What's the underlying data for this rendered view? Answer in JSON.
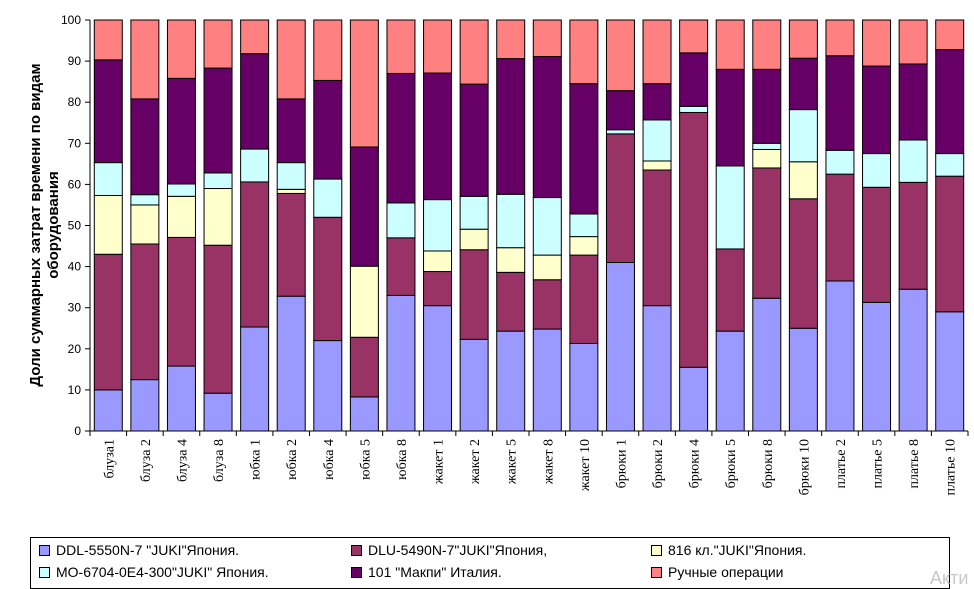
{
  "chart_data": {
    "type": "bar",
    "stacked": true,
    "ylabel": "Доли суммарных затрат времени по видам оборудования",
    "ylim": [
      0,
      100
    ],
    "yticks": [
      0,
      10,
      20,
      30,
      40,
      50,
      60,
      70,
      80,
      90,
      100
    ],
    "categories": [
      "блуза1",
      "блуза 2",
      "блуза 4",
      "блуза 8",
      "юбка 1",
      "юбка 2",
      "юбка 4",
      "юбка 5",
      "юбка 8",
      "жакет 1",
      "жакет 2",
      "жакет 5",
      "жакет 8",
      "жакет 10",
      "брюки 1",
      "брюки 2",
      "брюки 4",
      "брюки 5",
      "брюки 8",
      "брюки 10",
      "платье 2",
      "платье 5",
      "платье 8",
      "платье 10"
    ],
    "legend_position": "bottom",
    "series": [
      {
        "name": "DDL-5550N-7 \"JUKI\"Япония.",
        "color": "#9999ff",
        "values": [
          10,
          12.5,
          15.8,
          9.2,
          25.3,
          32.8,
          22,
          8.3,
          33,
          30.5,
          22.3,
          24.3,
          24.8,
          21.3,
          41,
          30.5,
          15.5,
          24.3,
          32.3,
          25,
          36.5,
          31.3,
          34.5,
          29
        ]
      },
      {
        "name": "DLU-5490N-7\"JUKI\"Япония,",
        "color": "#993366",
        "values": [
          33,
          33,
          31.3,
          36,
          35.3,
          25,
          30,
          14.5,
          14,
          8.3,
          21.8,
          14.3,
          12,
          21.5,
          31.3,
          33,
          62,
          20,
          31.7,
          31.5,
          26,
          28,
          26,
          33
        ]
      },
      {
        "name": "816 кл.\"JUKI\"Япония.",
        "color": "#ffffcc",
        "values": [
          14.3,
          9.5,
          10,
          13.8,
          0,
          1,
          0,
          17.3,
          0,
          5,
          5,
          6,
          6,
          4.5,
          0,
          2.2,
          0,
          0,
          4.5,
          9,
          0,
          0,
          0,
          0
        ]
      },
      {
        "name": "МО-6704-0Е4-300\"JUKI\" Япония.",
        "color": "#ccffff",
        "values": [
          8,
          2.5,
          3,
          3.8,
          8,
          6.5,
          9.3,
          0,
          8.5,
          12.5,
          8,
          13,
          14,
          5.5,
          1,
          10,
          1.5,
          20.2,
          1.5,
          12.7,
          5.8,
          8.2,
          10.3,
          5.5
        ]
      },
      {
        "name": "101 \"Макпи\" Италия.",
        "color": "#660066",
        "values": [
          25,
          23.3,
          25.7,
          25.5,
          23.2,
          15.5,
          24,
          29,
          31.5,
          30.8,
          27.3,
          33,
          34.3,
          31.7,
          9.5,
          8.8,
          13,
          23.5,
          18,
          12.5,
          23,
          21.3,
          18.5,
          25.3
        ]
      },
      {
        "name": "Ручные операции",
        "color": "#ff8080",
        "values": [
          9.7,
          19.2,
          14.2,
          11.7,
          8.2,
          19.2,
          14.7,
          30.9,
          13,
          12.9,
          15.6,
          9.4,
          8.9,
          15.5,
          17.2,
          15.5,
          8,
          12,
          12,
          9.3,
          8.7,
          11.2,
          10.7,
          7.2
        ]
      }
    ]
  },
  "watermark": "Акти"
}
